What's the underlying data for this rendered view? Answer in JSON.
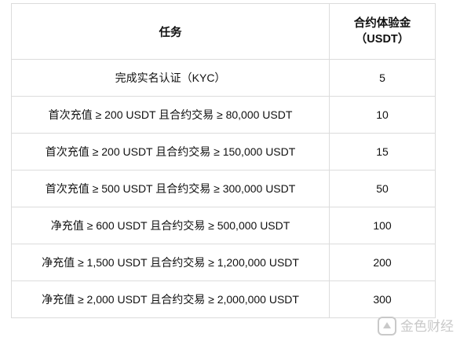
{
  "table": {
    "header": [
      "任务",
      "合约体验金（USDT）"
    ],
    "rows": [
      [
        "完成实名认证（KYC）",
        5
      ],
      [
        "首次充值 ≥ 200 USDT 且合约交易 ≥ 80,000 USDT",
        10
      ],
      [
        "首次充值 ≥ 200 USDT 且合约交易 ≥ 150,000 USDT",
        15
      ],
      [
        "首次充值 ≥ 500 USDT 且合约交易 ≥ 300,000 USDT",
        50
      ],
      [
        "净充值 ≥ 600 USDT 且合约交易 ≥ 500,000 USDT",
        100
      ],
      [
        "净充值 ≥ 1,500 USDT 且合约交易 ≥ 1,200,000 USDT",
        200
      ],
      [
        "净充值 ≥ 2,000 USDT 且合约交易 ≥ 2,000,000 USDT",
        300
      ]
    ]
  },
  "watermark": "金色财经"
}
